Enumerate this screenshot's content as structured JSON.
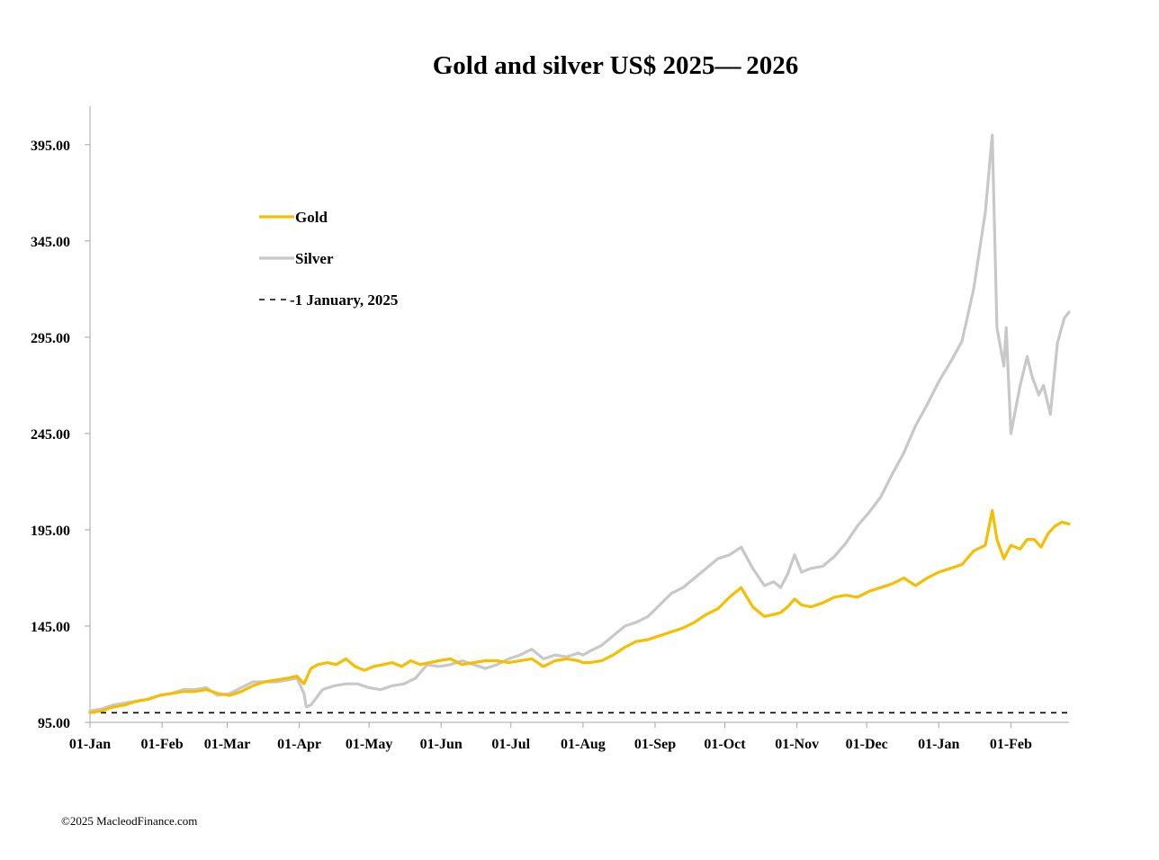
{
  "credit": "©2025 MacleodFinance.com",
  "chart_data": {
    "type": "line",
    "title": "Gold and silver  US$ 2025— 2026",
    "xlabel": "",
    "ylabel": "",
    "ylim": [
      95,
      415
    ],
    "y_ticks": [
      95,
      145,
      195,
      245,
      295,
      345,
      395
    ],
    "y_tick_labels": [
      "95.00",
      "145.00",
      "195.00",
      "245.00",
      "295.00",
      "345.00",
      "395.00"
    ],
    "x_tick_days": [
      0,
      31,
      59,
      90,
      120,
      151,
      181,
      212,
      243,
      273,
      304,
      334,
      365,
      396
    ],
    "x_tick_labels": [
      "01-Jan",
      "01-Feb",
      "01-Mar",
      "01-Apr",
      "01-May",
      "01-Jun",
      "01-Jul",
      "01-Aug",
      "01-Sep",
      "01-Oct",
      "01-Nov",
      "01-Dec",
      "01-Jan",
      "01-Feb"
    ],
    "x_range": [
      0,
      421
    ],
    "grid": false,
    "legend_placement": "upper-left",
    "reference_line": {
      "name": "-1 January, 2025",
      "value": 100,
      "style": "dashed",
      "color": "#000000"
    },
    "series": [
      {
        "name": "Gold",
        "color": "#F5BE00",
        "x": [
          0,
          5,
          10,
          15,
          20,
          25,
          30,
          35,
          40,
          45,
          50,
          55,
          60,
          65,
          70,
          75,
          80,
          85,
          89,
          92,
          95,
          98,
          102,
          106,
          110,
          114,
          118,
          122,
          126,
          130,
          134,
          138,
          142,
          146,
          150,
          155,
          160,
          165,
          170,
          175,
          180,
          185,
          190,
          195,
          200,
          205,
          210,
          212,
          215,
          220,
          225,
          230,
          235,
          240,
          245,
          250,
          255,
          260,
          265,
          270,
          275,
          280,
          285,
          290,
          294,
          297,
          300,
          303,
          306,
          310,
          315,
          320,
          325,
          330,
          335,
          340,
          345,
          350,
          355,
          360,
          365,
          370,
          375,
          380,
          385,
          388,
          390,
          393,
          396,
          400,
          403,
          406,
          409,
          412,
          415,
          418,
          421
        ],
        "values": [
          100,
          101,
          103,
          104,
          106,
          107,
          109,
          110,
          111,
          111,
          112,
          110,
          109,
          111,
          114,
          116,
          117,
          118,
          119,
          115,
          123,
          125,
          126,
          125,
          128,
          124,
          122,
          124,
          125,
          126,
          124,
          127,
          125,
          126,
          127,
          128,
          125,
          126,
          127,
          127,
          126,
          127,
          128,
          124,
          127,
          128,
          127,
          126,
          126,
          127,
          130,
          134,
          137,
          138,
          140,
          142,
          144,
          147,
          151,
          154,
          160,
          165,
          155,
          150,
          151,
          152,
          155,
          159,
          156,
          155,
          157,
          160,
          161,
          160,
          163,
          165,
          167,
          170,
          166,
          170,
          173,
          175,
          177,
          184,
          187,
          205,
          190,
          180,
          187,
          185,
          190,
          190,
          186,
          193,
          197,
          199,
          198
        ]
      },
      {
        "name": "Silver",
        "color": "#C8C8C8",
        "x": [
          0,
          5,
          10,
          15,
          20,
          25,
          30,
          35,
          40,
          45,
          50,
          55,
          60,
          65,
          70,
          75,
          80,
          85,
          89,
          92,
          93,
          95,
          100,
          105,
          110,
          115,
          120,
          125,
          130,
          135,
          140,
          145,
          150,
          155,
          160,
          165,
          170,
          175,
          180,
          185,
          190,
          195,
          200,
          205,
          210,
          212,
          215,
          220,
          225,
          230,
          235,
          240,
          245,
          250,
          255,
          260,
          265,
          270,
          275,
          280,
          285,
          290,
          294,
          297,
          300,
          303,
          306,
          310,
          315,
          320,
          325,
          330,
          335,
          340,
          345,
          350,
          355,
          360,
          365,
          370,
          375,
          380,
          385,
          388,
          390,
          393,
          394,
          396,
          400,
          403,
          405,
          408,
          410,
          413,
          416,
          419,
          421
        ],
        "values": [
          101,
          102,
          104,
          105,
          106,
          107,
          109,
          110,
          112,
          112,
          113,
          109,
          110,
          113,
          116,
          116,
          116,
          117,
          118,
          110,
          103,
          104,
          112,
          114,
          115,
          115,
          113,
          112,
          114,
          115,
          118,
          125,
          124,
          125,
          127,
          125,
          123,
          125,
          128,
          130,
          133,
          128,
          130,
          129,
          131,
          130,
          132,
          135,
          140,
          145,
          147,
          150,
          156,
          162,
          165,
          170,
          175,
          180,
          182,
          186,
          175,
          166,
          168,
          165,
          172,
          182,
          173,
          175,
          176,
          181,
          188,
          197,
          204,
          212,
          224,
          235,
          249,
          260,
          272,
          282,
          293,
          320,
          360,
          400,
          300,
          280,
          300,
          245,
          270,
          285,
          275,
          265,
          270,
          255,
          292,
          305,
          308
        ]
      }
    ]
  }
}
